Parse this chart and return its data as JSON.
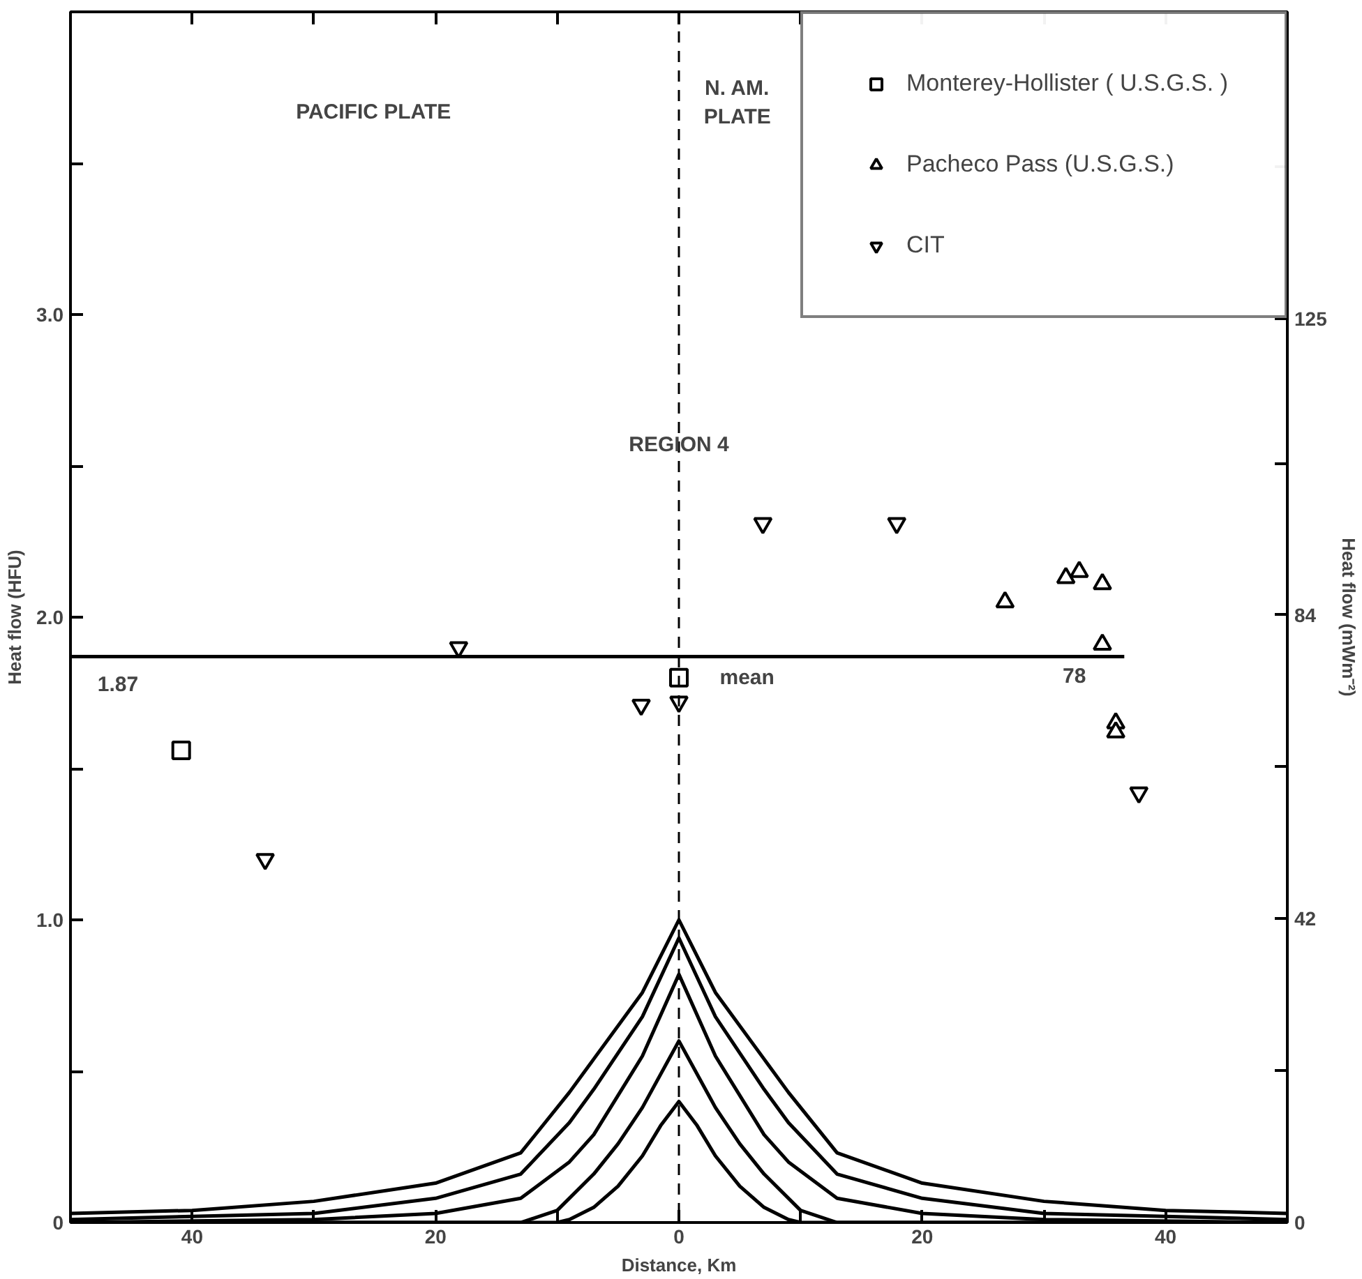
{
  "chart_data": {
    "type": "scatter",
    "xlabel": "Distance, Km",
    "ylabel": "Heat flow (HFU)",
    "y2label": "Heat flow (mWm⁻²)",
    "xlim": [
      -50,
      50
    ],
    "xticks": [
      {
        "value": -40,
        "label": "40"
      },
      {
        "value": -30,
        "label": null
      },
      {
        "value": -20,
        "label": "20"
      },
      {
        "value": -10,
        "label": null
      },
      0,
      {
        "value": 10,
        "label": null
      },
      20,
      {
        "value": 30,
        "label": null
      },
      40
    ],
    "ylim": [
      0,
      4.0
    ],
    "yticks": [
      0,
      {
        "value": 0.5,
        "label": null
      },
      {
        "value": 1.0,
        "label": "1.0"
      },
      {
        "value": 1.5,
        "label": null
      },
      {
        "value": 2.0,
        "label": "2.0"
      },
      {
        "value": 2.5,
        "label": null
      },
      {
        "value": 3.0,
        "label": "3.0"
      },
      {
        "value": 3.5,
        "label": null
      }
    ],
    "y2lim": [
      0,
      167.4
    ],
    "y2ticks": [
      0,
      {
        "value": 21,
        "label": null
      },
      42,
      {
        "value": 63,
        "label": null
      },
      84,
      {
        "value": 105,
        "label": null
      },
      125,
      {
        "value": 146,
        "label": null
      }
    ],
    "grid": false,
    "legend": "top right",
    "series": [
      {
        "name": "Monterey-Hollister ( U.S.G.S. )",
        "color": "#000000",
        "marker": "square",
        "x": [
          -40.9,
          0
        ],
        "values": [
          1.56,
          1.8
        ]
      },
      {
        "name": "Pacheco Pass (U.S.G.S.)",
        "color": "#000000",
        "marker": "triangle",
        "x": [
          26.8,
          31.8,
          32.9,
          34.8,
          34.8,
          35.9,
          35.9
        ],
        "values": [
          2.05,
          2.13,
          2.15,
          2.11,
          1.91,
          1.65,
          1.62
        ]
      },
      {
        "name": "CIT",
        "color": "#000000",
        "x": [
          -34,
          -18.1,
          -3.1,
          0,
          6.9,
          17.9,
          37.8
        ],
        "values": [
          1.2,
          1.9,
          1.71,
          1.72,
          2.31,
          2.31,
          1.42
        ]
      },
      {
        "type": "line",
        "color": "#000000",
        "marker": "none",
        "line_style": "solid",
        "x": [
          -50,
          36.6
        ],
        "values": [
          1.87,
          1.87
        ]
      },
      {
        "type": "line",
        "color": "#000000",
        "marker": "none",
        "line_style": "solid",
        "x": [
          -50,
          -40,
          -30,
          -20,
          -13,
          -9,
          -7,
          -3,
          0,
          3,
          7,
          9,
          13,
          20,
          30,
          40,
          50
        ],
        "values": [
          0.03,
          0.04,
          0.07,
          0.13,
          0.23,
          0.43,
          0.54,
          0.76,
          1.0,
          0.76,
          0.54,
          0.43,
          0.23,
          0.13,
          0.07,
          0.04,
          0.03
        ]
      },
      {
        "type": "line",
        "color": "#000000",
        "marker": "none",
        "line_style": "solid",
        "x": [
          -50,
          -40,
          -30,
          -20,
          -13,
          -9,
          -7,
          -3,
          0,
          3,
          7,
          9,
          13,
          20,
          30,
          40,
          50
        ],
        "values": [
          0.01,
          0.02,
          0.03,
          0.08,
          0.16,
          0.33,
          0.44,
          0.68,
          0.94,
          0.68,
          0.44,
          0.33,
          0.16,
          0.08,
          0.03,
          0.02,
          0.01
        ]
      },
      {
        "type": "line",
        "color": "#000000",
        "marker": "none",
        "line_style": "solid",
        "x": [
          -50,
          -30,
          -20,
          -13,
          -9,
          -7,
          -3,
          0,
          3,
          7,
          9,
          13,
          20,
          30,
          50
        ],
        "values": [
          0,
          0.01,
          0.03,
          0.08,
          0.2,
          0.29,
          0.55,
          0.82,
          0.55,
          0.29,
          0.2,
          0.08,
          0.03,
          0.01,
          0
        ]
      },
      {
        "type": "line",
        "color": "#000000",
        "marker": "none",
        "line_style": "solid",
        "x": [
          -50,
          -13,
          -10,
          -7,
          -5,
          -3,
          0,
          3,
          5,
          7,
          10,
          13,
          50
        ],
        "values": [
          0,
          0,
          0.04,
          0.16,
          0.26,
          0.38,
          0.6,
          0.38,
          0.26,
          0.16,
          0.04,
          0,
          0
        ]
      },
      {
        "type": "line",
        "color": "#000000",
        "marker": "none",
        "line_style": "solid",
        "x": [
          -50,
          -10,
          -9,
          -7,
          -5,
          -3,
          -1.5,
          0,
          1.5,
          3,
          5,
          7,
          9,
          10,
          50
        ],
        "values": [
          0,
          0,
          0.01,
          0.05,
          0.12,
          0.22,
          0.32,
          0.4,
          0.32,
          0.22,
          0.12,
          0.05,
          0.01,
          0,
          0
        ]
      }
    ],
    "ref_lines": [
      {
        "axis": "x",
        "value": 0,
        "line_style": "dashed",
        "color": "#000000"
      }
    ],
    "annotations": [
      "PACIFIC PLATE",
      "N. AM.\nPLATE",
      "1.87",
      "mean",
      "78",
      {
        "text": "REGION 4",
        "x": 0,
        "y": 2.57
      }
    ]
  }
}
